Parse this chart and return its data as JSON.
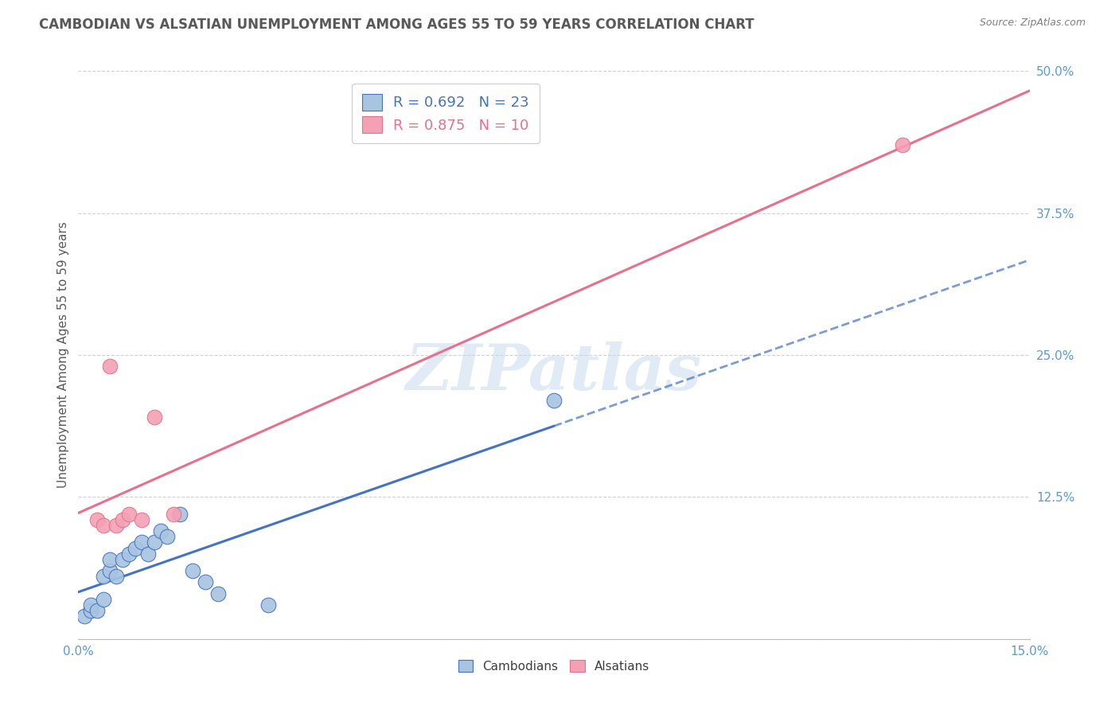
{
  "title": "CAMBODIAN VS ALSATIAN UNEMPLOYMENT AMONG AGES 55 TO 59 YEARS CORRELATION CHART",
  "source": "Source: ZipAtlas.com",
  "ylabel": "Unemployment Among Ages 55 to 59 years",
  "xlim": [
    0.0,
    0.15
  ],
  "ylim": [
    0.0,
    0.5
  ],
  "xticks": [
    0.0,
    0.03,
    0.06,
    0.09,
    0.12,
    0.15
  ],
  "xticklabels": [
    "0.0%",
    "",
    "",
    "",
    "",
    "15.0%"
  ],
  "yticks": [
    0.0,
    0.125,
    0.25,
    0.375,
    0.5
  ],
  "yticklabels": [
    "",
    "12.5%",
    "25.0%",
    "37.5%",
    "50.0%"
  ],
  "cambodian_x": [
    0.001,
    0.002,
    0.002,
    0.003,
    0.004,
    0.004,
    0.005,
    0.005,
    0.006,
    0.007,
    0.008,
    0.009,
    0.01,
    0.011,
    0.012,
    0.013,
    0.014,
    0.016,
    0.018,
    0.02,
    0.022,
    0.03,
    0.075
  ],
  "cambodian_y": [
    0.02,
    0.025,
    0.03,
    0.025,
    0.035,
    0.055,
    0.06,
    0.07,
    0.055,
    0.07,
    0.075,
    0.08,
    0.085,
    0.075,
    0.085,
    0.095,
    0.09,
    0.11,
    0.06,
    0.05,
    0.04,
    0.03,
    0.21
  ],
  "alsatian_x": [
    0.003,
    0.004,
    0.005,
    0.006,
    0.007,
    0.008,
    0.01,
    0.012,
    0.015,
    0.13
  ],
  "alsatian_y": [
    0.105,
    0.1,
    0.24,
    0.1,
    0.105,
    0.11,
    0.105,
    0.195,
    0.11,
    0.435
  ],
  "cambodian_color": "#a8c4e0",
  "alsatian_color": "#f4a0b5",
  "cambodian_line_color": "#4472c4",
  "alsatian_line_color": "#e8708a",
  "cambodian_R": "0.692",
  "cambodian_N": "23",
  "alsatian_R": "0.875",
  "alsatian_N": "10",
  "watermark": "ZIPatlas",
  "background_color": "#ffffff",
  "grid_color": "#cccccc",
  "tick_color": "#5b9bd5",
  "title_color": "#595959",
  "source_color": "#808080",
  "title_fontsize": 12,
  "axis_label_fontsize": 11,
  "tick_fontsize": 11,
  "legend_fontsize": 13
}
